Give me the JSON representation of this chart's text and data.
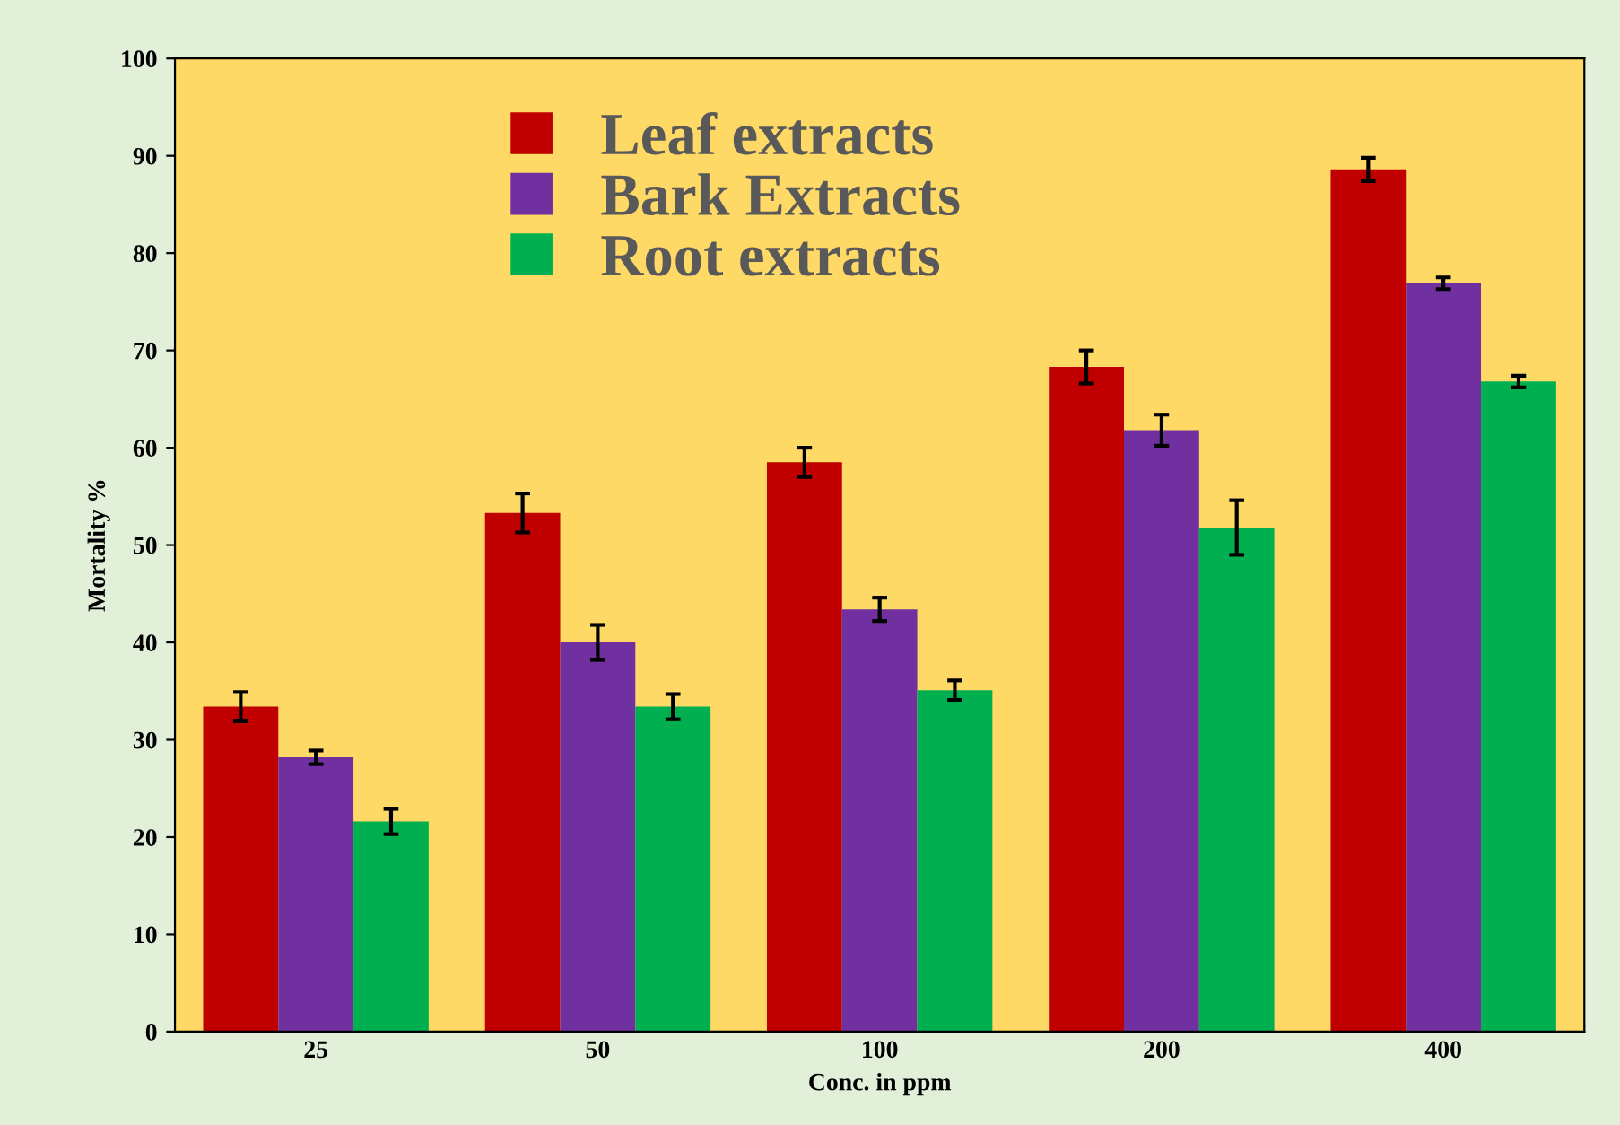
{
  "chart_data": {
    "type": "bar",
    "xlabel": "Conc. in ppm",
    "ylabel": "Mortality %",
    "categories": [
      "25",
      "50",
      "100",
      "200",
      "400"
    ],
    "series": [
      {
        "name": "Leaf extracts",
        "color": "#c00000",
        "values": [
          33.4,
          53.3,
          58.5,
          68.3,
          88.6
        ],
        "errors": [
          1.5,
          2.0,
          1.5,
          1.7,
          1.2
        ]
      },
      {
        "name": "Bark Extracts",
        "color": "#7030a0",
        "values": [
          28.2,
          40.0,
          43.4,
          61.8,
          76.9
        ],
        "errors": [
          0.7,
          1.8,
          1.2,
          1.6,
          0.6
        ]
      },
      {
        "name": "Root extracts",
        "color": "#00b050",
        "values": [
          21.6,
          33.4,
          35.1,
          51.8,
          66.8
        ],
        "errors": [
          1.3,
          1.3,
          1.0,
          2.8,
          0.6
        ]
      }
    ],
    "ylim": [
      0,
      100
    ],
    "yticks": [
      0,
      10,
      20,
      30,
      40,
      50,
      60,
      70,
      80,
      90,
      100
    ],
    "grid": false,
    "legend": "top left"
  }
}
